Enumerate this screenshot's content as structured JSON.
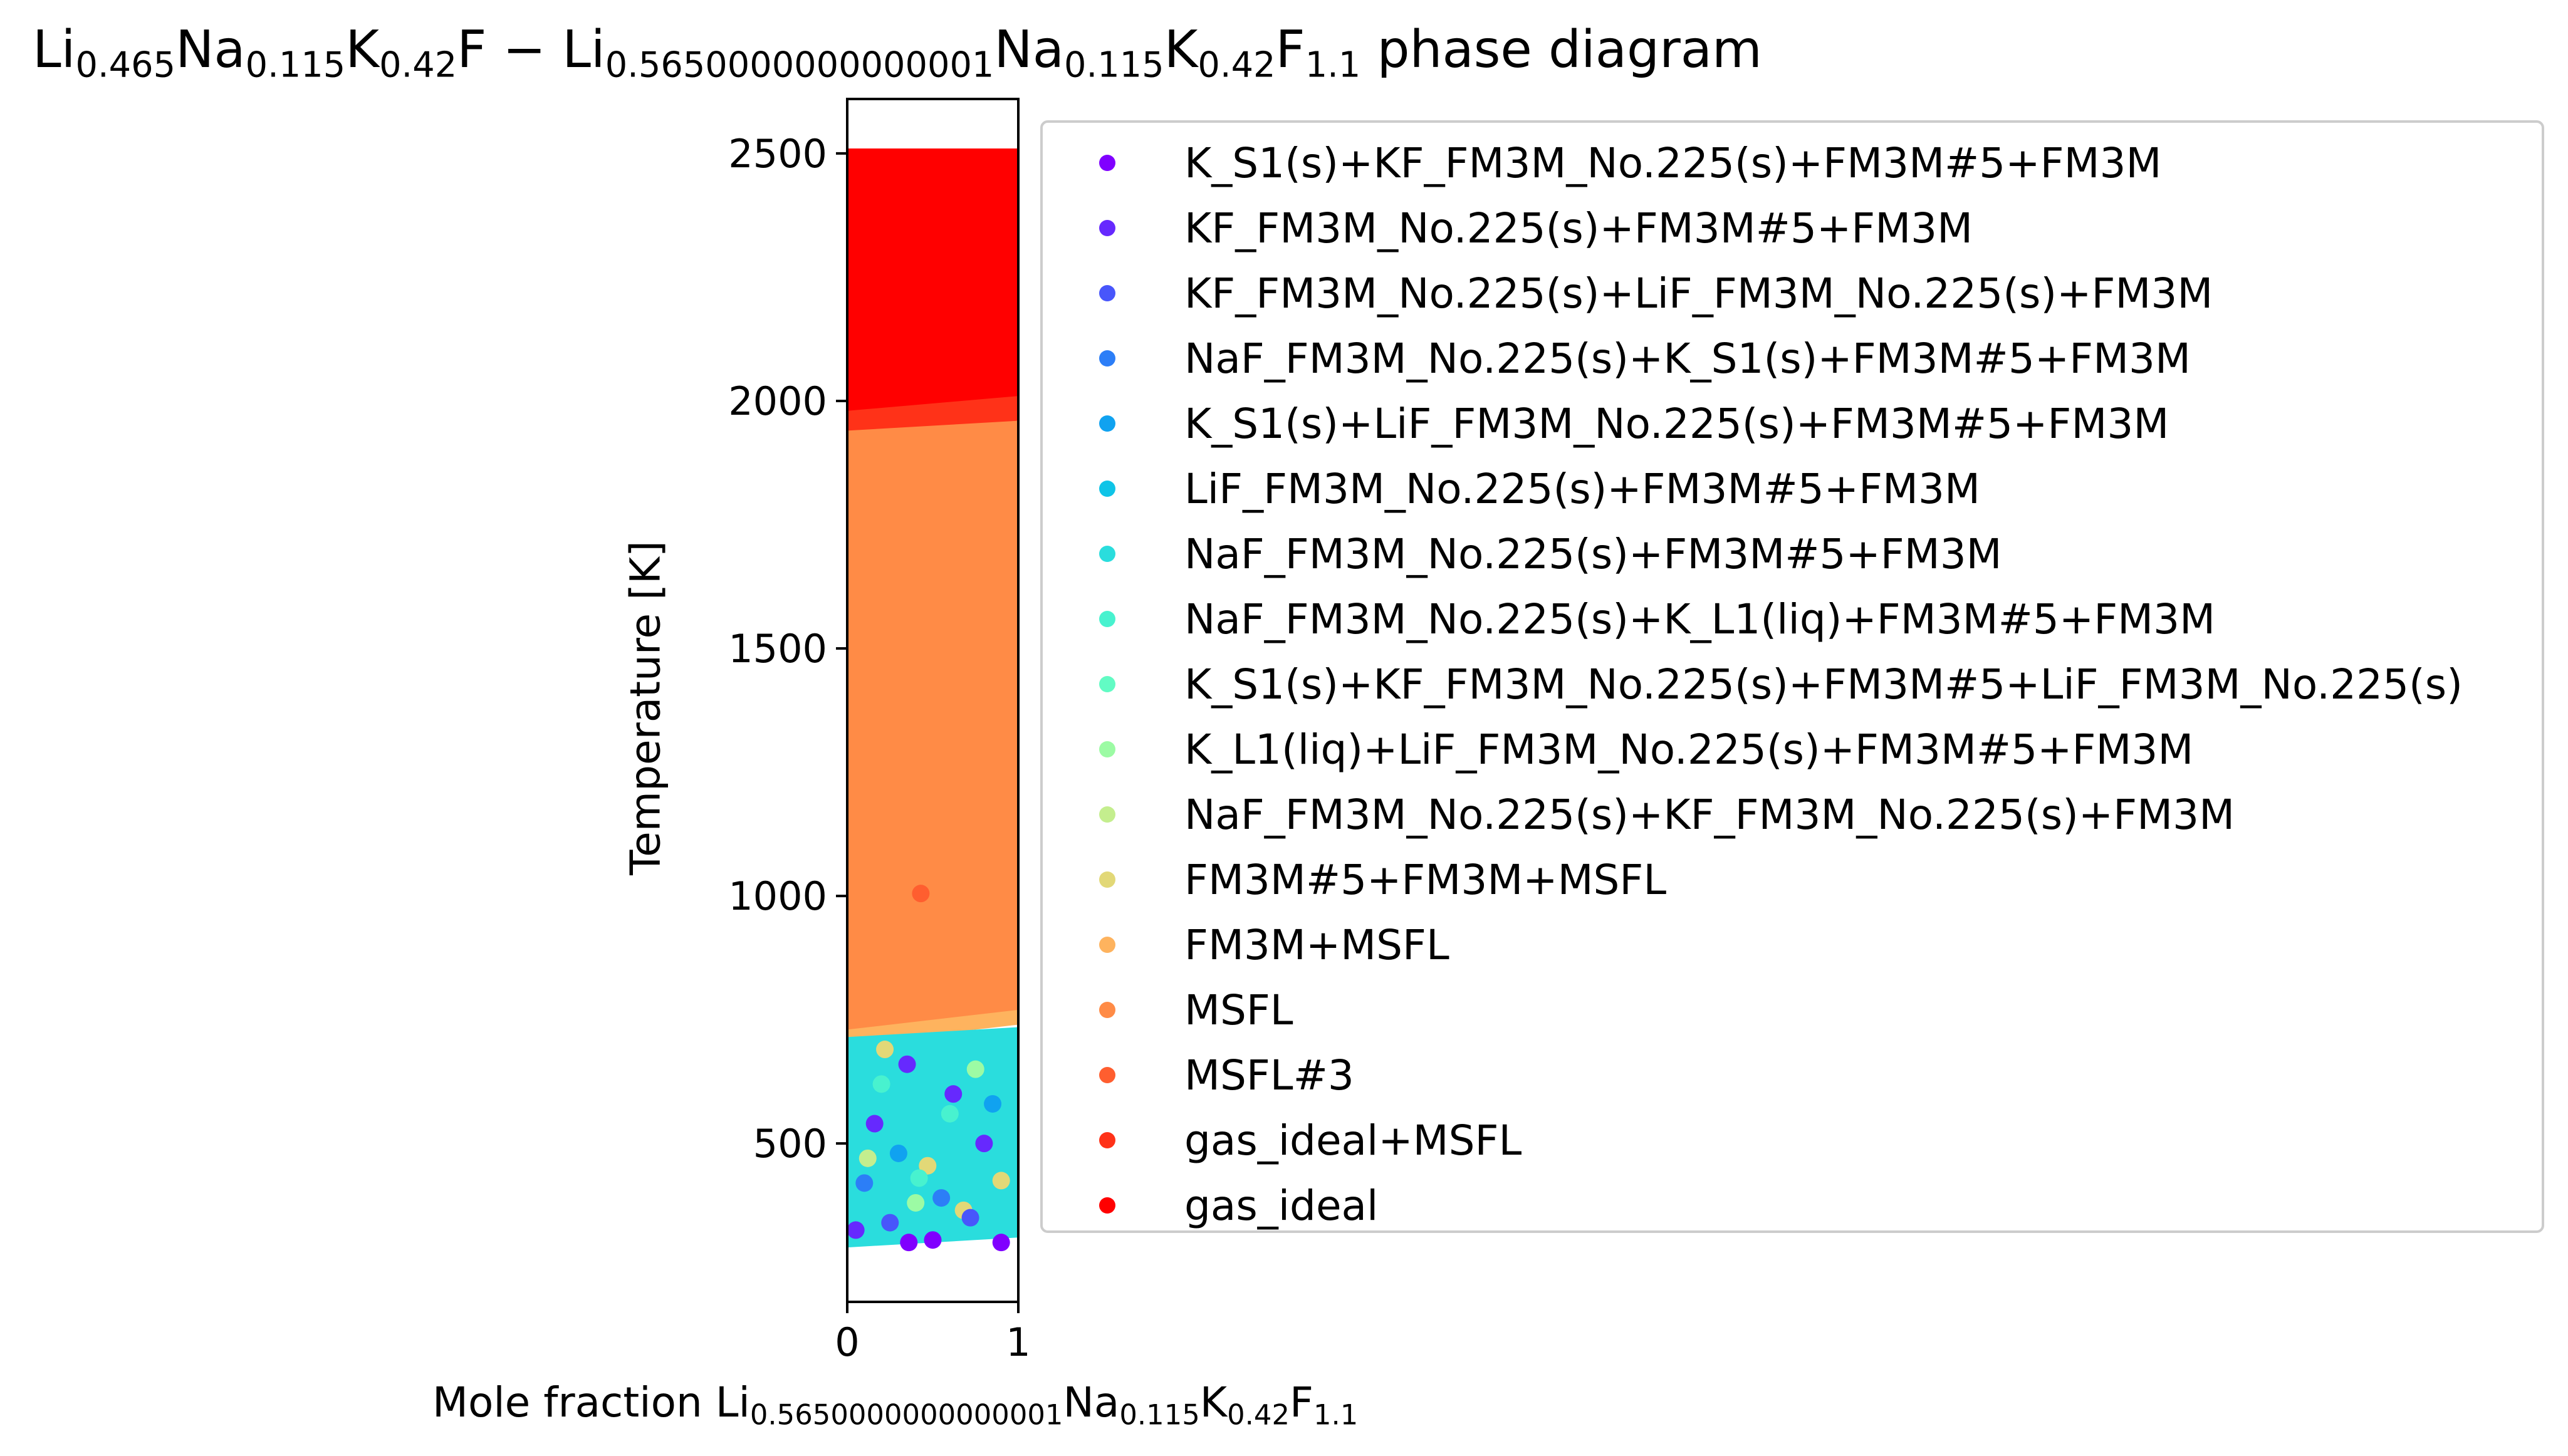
{
  "title_parts": [
    {
      "t": "Li",
      "s": false
    },
    {
      "t": "0.465",
      "s": true
    },
    {
      "t": "Na",
      "s": false
    },
    {
      "t": "0.115",
      "s": true
    },
    {
      "t": "K",
      "s": false
    },
    {
      "t": "0.42",
      "s": true
    },
    {
      "t": "F − Li",
      "s": false
    },
    {
      "t": "0.5650000000000001",
      "s": true
    },
    {
      "t": "Na",
      "s": false
    },
    {
      "t": "0.115",
      "s": true
    },
    {
      "t": "K",
      "s": false
    },
    {
      "t": "0.42",
      "s": true
    },
    {
      "t": "F",
      "s": false
    },
    {
      "t": "1.1",
      "s": true
    },
    {
      "t": " phase diagram",
      "s": false
    }
  ],
  "xlabel_parts": [
    {
      "t": "Mole fraction Li",
      "s": false
    },
    {
      "t": "0.5650000000000001",
      "s": true
    },
    {
      "t": "Na",
      "s": false
    },
    {
      "t": "0.115",
      "s": true
    },
    {
      "t": "K",
      "s": false
    },
    {
      "t": "0.42",
      "s": true
    },
    {
      "t": "F",
      "s": false
    },
    {
      "t": "1.1",
      "s": true
    }
  ],
  "chart_data": {
    "type": "scatter",
    "ylabel": "Temperature [K]",
    "xlim": [
      0,
      1
    ],
    "ylim": [
      180,
      2610
    ],
    "x_ticks": [
      0,
      1
    ],
    "x_tick_labels": [
      "0",
      "1"
    ],
    "y_ticks": [
      500,
      1000,
      1500,
      2000,
      2500
    ],
    "y_tick_labels": [
      "500",
      "1000",
      "1500",
      "2000",
      "2500"
    ],
    "grid": false,
    "legend_position": "right, outside plot",
    "series": [
      {
        "name": "K_S1(s)+KF_FM3M_No.225(s)+FM3M#5+FM3M",
        "color": "#8000ff"
      },
      {
        "name": "KF_FM3M_No.225(s)+FM3M#5+FM3M",
        "color": "#6629fe"
      },
      {
        "name": "KF_FM3M_No.225(s)+LiF_FM3M_No.225(s)+FM3M",
        "color": "#4856fb"
      },
      {
        "name": "NaF_FM3M_No.225(s)+K_S1(s)+FM3M#5+FM3M",
        "color": "#2c7ef7"
      },
      {
        "name": "K_S1(s)+LiF_FM3M_No.225(s)+FM3M#5+FM3M",
        "color": "#10a2f0"
      },
      {
        "name": "LiF_FM3M_No.225(s)+FM3M#5+FM3M",
        "color": "#0fc4e7"
      },
      {
        "name": "NaF_FM3M_No.225(s)+FM3M#5+FM3M",
        "color": "#2adddd"
      },
      {
        "name": "NaF_FM3M_No.225(s)+K_L1(liq)+FM3M#5+FM3M",
        "color": "#48f2cf"
      },
      {
        "name": "K_S1(s)+KF_FM3M_No.225(s)+FM3M#5+LiF_FM3M_No.225(s)",
        "color": "#62fbc4"
      },
      {
        "name": "K_L1(liq)+LiF_FM3M_No.225(s)+FM3M#5+FM3M",
        "color": "#9cfba4"
      },
      {
        "name": "NaF_FM3M_No.225(s)+KF_FM3M_No.225(s)+FM3M",
        "color": "#c4ee8e"
      },
      {
        "name": "FM3M#5+FM3M+MSFL",
        "color": "#e2d877"
      },
      {
        "name": "FM3M+MSFL",
        "color": "#feb35e"
      },
      {
        "name": "MSFL",
        "color": "#ff8b46"
      },
      {
        "name": "MSFL#3",
        "color": "#ff5e2f"
      },
      {
        "name": "gas_ideal+MSFL",
        "color": "#ff3218"
      },
      {
        "name": "gas_ideal",
        "color": "#ff0000"
      }
    ],
    "regions": [
      {
        "phase": "gas_ideal",
        "y_bottom_at_x0": 1960,
        "y_bottom_at_x1": 2000,
        "y_top": 2510
      },
      {
        "phase": "gas_ideal+MSFL",
        "y_bottom_at_x0": 1930,
        "y_bottom_at_x1": 1960,
        "y_top_at_x0": 1980,
        "y_top_at_x1": 2010
      },
      {
        "phase": "MSFL",
        "y_bottom_at_x0": 720,
        "y_bottom_at_x1": 760,
        "y_top_at_x0": 1940,
        "y_top_at_x1": 1960
      },
      {
        "phase": "FM3M+MSFL",
        "y_bottom_at_x0": 700,
        "y_bottom_at_x1": 740,
        "y_top_at_x0": 730,
        "y_top_at_x1": 770
      },
      {
        "phase": "NaF_FM3M_No.225(s)+FM3M#5+FM3M",
        "y_bottom_at_x0": 290,
        "y_bottom_at_x1": 310,
        "y_top_at_x0": 715,
        "y_top_at_x1": 735
      }
    ],
    "points": [
      {
        "phase": "MSFL#3",
        "x": 0.43,
        "y": 1005
      },
      {
        "phase": "FM3M#5+FM3M+MSFL",
        "x": 0.47,
        "y": 455
      },
      {
        "phase": "FM3M#5+FM3M+MSFL",
        "x": 0.9,
        "y": 425
      },
      {
        "phase": "FM3M#5+FM3M+MSFL",
        "x": 0.68,
        "y": 365
      },
      {
        "phase": "FM3M#5+FM3M+MSFL",
        "x": 0.22,
        "y": 690
      },
      {
        "phase": "K_S1(s)+KF_FM3M_No.225(s)+FM3M#5+FM3M",
        "x": 0.36,
        "y": 300
      },
      {
        "phase": "K_S1(s)+KF_FM3M_No.225(s)+FM3M#5+FM3M",
        "x": 0.5,
        "y": 305
      },
      {
        "phase": "K_S1(s)+KF_FM3M_No.225(s)+FM3M#5+FM3M",
        "x": 0.9,
        "y": 300
      },
      {
        "phase": "KF_FM3M_No.225(s)+FM3M#5+FM3M",
        "x": 0.05,
        "y": 325
      },
      {
        "phase": "KF_FM3M_No.225(s)+FM3M#5+FM3M",
        "x": 0.35,
        "y": 660
      },
      {
        "phase": "KF_FM3M_No.225(s)+FM3M#5+FM3M",
        "x": 0.16,
        "y": 540
      },
      {
        "phase": "KF_FM3M_No.225(s)+FM3M#5+FM3M",
        "x": 0.62,
        "y": 600
      },
      {
        "phase": "KF_FM3M_No.225(s)+FM3M#5+FM3M",
        "x": 0.8,
        "y": 500
      },
      {
        "phase": "KF_FM3M_No.225(s)+LiF_FM3M_No.225(s)+FM3M",
        "x": 0.25,
        "y": 340
      },
      {
        "phase": "KF_FM3M_No.225(s)+LiF_FM3M_No.225(s)+FM3M",
        "x": 0.72,
        "y": 350
      },
      {
        "phase": "NaF_FM3M_No.225(s)+K_S1(s)+FM3M#5+FM3M",
        "x": 0.1,
        "y": 420
      },
      {
        "phase": "NaF_FM3M_No.225(s)+K_S1(s)+FM3M#5+FM3M",
        "x": 0.55,
        "y": 390
      },
      {
        "phase": "K_S1(s)+LiF_FM3M_No.225(s)+FM3M#5+FM3M",
        "x": 0.3,
        "y": 480
      },
      {
        "phase": "K_S1(s)+LiF_FM3M_No.225(s)+FM3M#5+FM3M",
        "x": 0.85,
        "y": 580
      },
      {
        "phase": "NaF_FM3M_No.225(s)+K_L1(liq)+FM3M#5+FM3M",
        "x": 0.2,
        "y": 620
      },
      {
        "phase": "NaF_FM3M_No.225(s)+K_L1(liq)+FM3M#5+FM3M",
        "x": 0.6,
        "y": 560
      },
      {
        "phase": "NaF_FM3M_No.225(s)+K_L1(liq)+FM3M#5+FM3M",
        "x": 0.42,
        "y": 430
      },
      {
        "phase": "K_L1(liq)+LiF_FM3M_No.225(s)+FM3M#5+FM3M",
        "x": 0.75,
        "y": 650
      },
      {
        "phase": "K_L1(liq)+LiF_FM3M_No.225(s)+FM3M#5+FM3M",
        "x": 0.4,
        "y": 380
      },
      {
        "phase": "NaF_FM3M_No.225(s)+KF_FM3M_No.225(s)+FM3M",
        "x": 0.12,
        "y": 470
      }
    ]
  }
}
